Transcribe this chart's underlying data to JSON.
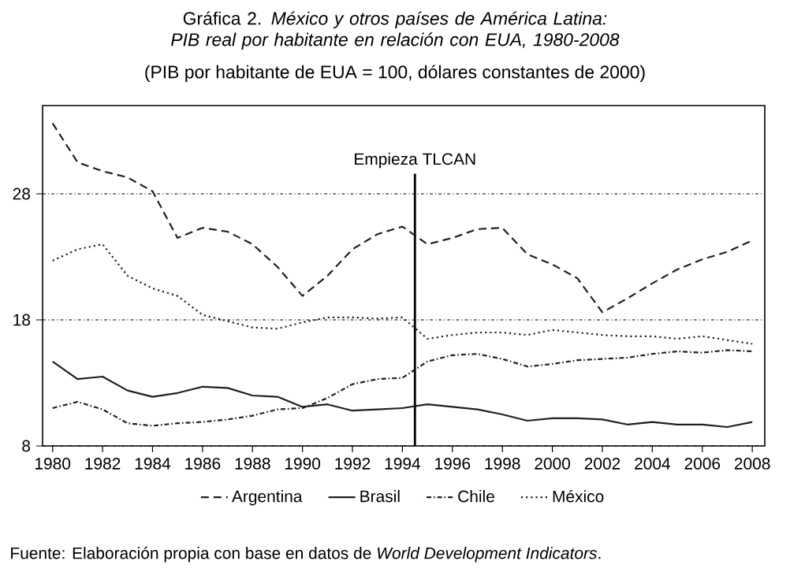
{
  "chart_data": {
    "type": "line",
    "title": "Gráfica 2. *México y otros países de América Latina: PIB real por habitante en relación con EUA, 1980-2008*",
    "subtitle": "(PIB por habitante de EUA = 100, dólares constantes de 2000)",
    "x": [
      1980,
      1981,
      1982,
      1983,
      1984,
      1985,
      1986,
      1987,
      1988,
      1989,
      1990,
      1991,
      1992,
      1993,
      1994,
      1995,
      1996,
      1997,
      1998,
      1999,
      2000,
      2001,
      2002,
      2003,
      2004,
      2005,
      2006,
      2007,
      2008
    ],
    "series": [
      {
        "name": "Argentina",
        "color": "#231f20",
        "line_style": "dashed",
        "values": [
          33.6,
          30.5,
          29.8,
          29.3,
          28.2,
          24.5,
          25.3,
          25.0,
          24.0,
          22.2,
          19.9,
          21.5,
          23.6,
          24.8,
          25.4,
          24.0,
          24.5,
          25.2,
          25.3,
          23.2,
          22.4,
          21.3,
          18.6,
          19.7,
          20.9,
          22.0,
          22.8,
          23.4,
          24.3
        ]
      },
      {
        "name": "Brasil",
        "color": "#231f20",
        "line_style": "solid",
        "values": [
          14.7,
          13.3,
          13.5,
          12.4,
          11.9,
          12.2,
          12.7,
          12.6,
          12.0,
          11.9,
          11.1,
          11.3,
          10.8,
          10.9,
          11.0,
          11.3,
          11.1,
          10.9,
          10.5,
          10.0,
          10.2,
          10.2,
          10.1,
          9.7,
          9.9,
          9.7,
          9.7,
          9.5,
          9.9
        ]
      },
      {
        "name": "Chile",
        "color": "#231f20",
        "line_style": "dashdot",
        "values": [
          11.0,
          11.5,
          10.9,
          9.8,
          9.6,
          9.8,
          9.9,
          10.1,
          10.4,
          10.9,
          11.0,
          11.8,
          12.9,
          13.3,
          13.4,
          14.7,
          15.2,
          15.3,
          14.9,
          14.3,
          14.5,
          14.8,
          14.9,
          15.0,
          15.3,
          15.5,
          15.4,
          15.6,
          15.5
        ]
      },
      {
        "name": "México",
        "color": "#231f20",
        "line_style": "dotted",
        "values": [
          22.7,
          23.6,
          24.0,
          21.5,
          20.5,
          19.9,
          18.4,
          17.9,
          17.4,
          17.3,
          17.8,
          18.2,
          18.2,
          18.1,
          18.2,
          16.5,
          16.8,
          17.0,
          17.0,
          16.8,
          17.2,
          17.0,
          16.8,
          16.7,
          16.7,
          16.5,
          16.7,
          16.4,
          16.1
        ]
      }
    ],
    "xlim": [
      1979.6,
      2008.5
    ],
    "ylim": [
      8,
      35
    ],
    "xticks": [
      1980,
      1982,
      1984,
      1986,
      1988,
      1990,
      1992,
      1994,
      1996,
      1998,
      2000,
      2002,
      2004,
      2006,
      2008
    ],
    "yticks": [
      8,
      18,
      28
    ],
    "grid": "y",
    "ref_lines": [
      {
        "axis": "x",
        "value": 1994.5,
        "label": "Empieza TLCAN"
      }
    ],
    "legend": "bottom",
    "annotations": [
      "Fuente: Elaboración propia con base en datos de *World Development Indicators*."
    ]
  }
}
